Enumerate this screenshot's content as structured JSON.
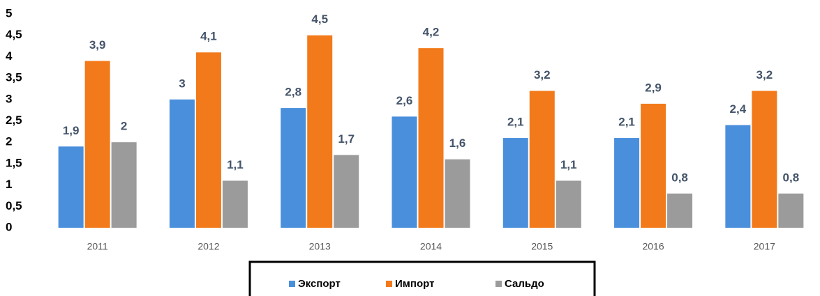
{
  "chart_data": {
    "type": "bar",
    "categories": [
      "2011",
      "2012",
      "2013",
      "2014",
      "2015",
      "2016",
      "2017"
    ],
    "series": [
      {
        "name": "Экспорт",
        "color": "#4a8fdc",
        "values": [
          1.9,
          3,
          2.8,
          2.6,
          2.1,
          2.1,
          2.4
        ],
        "value_labels": [
          "1,9",
          "3",
          "2,8",
          "2,6",
          "2,1",
          "2,1",
          "2,4"
        ]
      },
      {
        "name": "Импорт",
        "color": "#f27a1a",
        "values": [
          3.9,
          4.1,
          4.5,
          4.2,
          3.2,
          2.9,
          3.2
        ],
        "value_labels": [
          "3,9",
          "4,1",
          "4,5",
          "4,2",
          "3,2",
          "2,9",
          "3,2"
        ]
      },
      {
        "name": "Сальдо",
        "color": "#9b9b9b",
        "values": [
          2,
          1.1,
          1.7,
          1.6,
          1.1,
          0.8,
          0.8
        ],
        "value_labels": [
          "2",
          "1,1",
          "1,7",
          "1,6",
          "1,1",
          "0,8",
          "0,8"
        ]
      }
    ],
    "ylim": [
      0,
      5
    ],
    "yticks": [
      0,
      {
        "value": 0.5,
        "label": "0,5"
      },
      1,
      {
        "value": 1.5,
        "label": "1,5"
      },
      2,
      {
        "value": 2.5,
        "label": "2,5"
      },
      3,
      {
        "value": 3.5,
        "label": "3,5"
      },
      4,
      {
        "value": 4.5,
        "label": "4,5"
      },
      5
    ],
    "grid": false,
    "legend": "bottom"
  }
}
